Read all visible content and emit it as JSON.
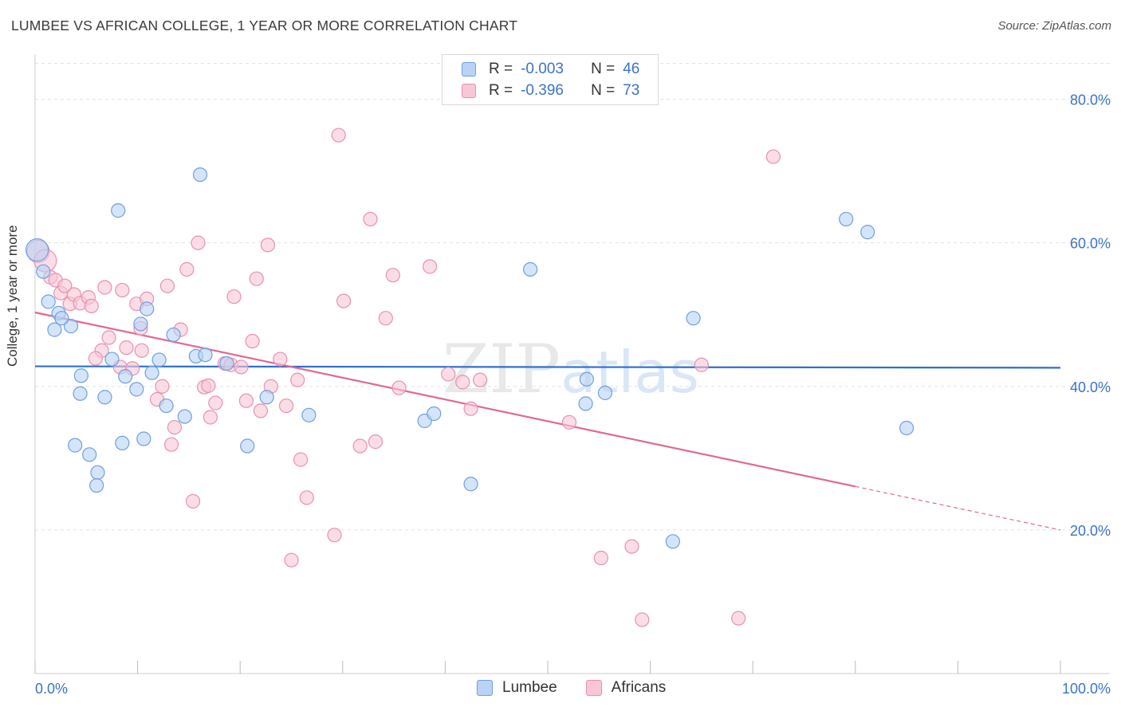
{
  "title": "LUMBEE VS AFRICAN COLLEGE, 1 YEAR OR MORE CORRELATION CHART",
  "source": "Source: ZipAtlas.com",
  "watermark": "ZIPatlas",
  "colors": {
    "lumbee_fill": "#b8d3f5",
    "lumbee_stroke": "#6f9fe0",
    "lumbee_line": "#2f6fcf",
    "africans_fill": "#f8c6d6",
    "africans_stroke": "#e891ae",
    "africans_line": "#e06896",
    "axis_text": "#3b73c8"
  },
  "legend": {
    "rows": [
      {
        "r_label": "R =",
        "r_value": "-0.003",
        "n_label": "N =",
        "n_value": "46"
      },
      {
        "r_label": "R =",
        "r_value": "-0.396",
        "n_label": "N =",
        "n_value": "73"
      }
    ]
  },
  "bottom_legend": [
    "Lumbee",
    "Africans"
  ],
  "chart_data": {
    "type": "scatter",
    "title": "LUMBEE VS AFRICAN COLLEGE, 1 YEAR OR MORE CORRELATION CHART",
    "xlabel": "",
    "ylabel": "College, 1 year or more",
    "xlim": [
      0,
      100
    ],
    "ylim": [
      0,
      85
    ],
    "x_ticks": [
      "0.0%",
      "100.0%"
    ],
    "y_ticks": [
      {
        "value": 80,
        "label": "80.0%"
      },
      {
        "value": 60,
        "label": "60.0%"
      },
      {
        "value": 40,
        "label": "40.0%"
      },
      {
        "value": 20,
        "label": "20.0%"
      }
    ],
    "series": [
      {
        "name": "Lumbee",
        "r": -0.003,
        "n": 46,
        "trend": {
          "x0": 0,
          "y0": 42.8,
          "x1": 100,
          "y1": 42.6,
          "solid_to": 100
        },
        "points": [
          [
            0.2,
            59.0
          ],
          [
            0.8,
            56.0
          ],
          [
            1.3,
            51.8
          ],
          [
            1.9,
            47.9
          ],
          [
            2.3,
            50.2
          ],
          [
            3.5,
            48.4
          ],
          [
            2.6,
            49.5
          ],
          [
            8.1,
            64.5
          ],
          [
            16.1,
            69.5
          ],
          [
            4.5,
            41.5
          ],
          [
            4.4,
            39.0
          ],
          [
            6.8,
            38.5
          ],
          [
            7.5,
            43.8
          ],
          [
            8.8,
            41.4
          ],
          [
            9.9,
            39.6
          ],
          [
            10.6,
            32.7
          ],
          [
            8.5,
            32.1
          ],
          [
            3.9,
            31.8
          ],
          [
            5.3,
            30.5
          ],
          [
            6.1,
            28.0
          ],
          [
            6.0,
            26.2
          ],
          [
            10.3,
            48.7
          ],
          [
            10.9,
            50.8
          ],
          [
            11.4,
            41.9
          ],
          [
            12.1,
            43.7
          ],
          [
            12.8,
            37.3
          ],
          [
            13.5,
            47.2
          ],
          [
            14.6,
            35.8
          ],
          [
            15.7,
            44.2
          ],
          [
            16.6,
            44.4
          ],
          [
            18.7,
            43.2
          ],
          [
            20.7,
            31.7
          ],
          [
            22.6,
            38.5
          ],
          [
            26.7,
            36.0
          ],
          [
            38.0,
            35.2
          ],
          [
            38.9,
            36.2
          ],
          [
            42.5,
            26.4
          ],
          [
            48.3,
            56.3
          ],
          [
            53.8,
            41.0
          ],
          [
            53.7,
            37.6
          ],
          [
            55.6,
            39.1
          ],
          [
            62.2,
            18.4
          ],
          [
            64.2,
            49.5
          ],
          [
            79.1,
            63.3
          ],
          [
            81.2,
            61.5
          ],
          [
            85.0,
            34.2
          ]
        ]
      },
      {
        "name": "Africans",
        "r": -0.396,
        "n": 73,
        "trend": {
          "x0": 0,
          "y0": 50.3,
          "x1": 100,
          "y1": 20.0,
          "solid_to": 80
        },
        "points": [
          [
            0.3,
            58.8
          ],
          [
            1.0,
            57.5
          ],
          [
            1.5,
            55.2
          ],
          [
            2.0,
            54.8
          ],
          [
            2.5,
            53.0
          ],
          [
            2.9,
            54.0
          ],
          [
            3.4,
            51.5
          ],
          [
            3.8,
            52.8
          ],
          [
            4.4,
            51.6
          ],
          [
            5.2,
            52.4
          ],
          [
            5.5,
            51.2
          ],
          [
            6.5,
            45.0
          ],
          [
            5.9,
            43.9
          ],
          [
            7.2,
            46.8
          ],
          [
            6.8,
            53.8
          ],
          [
            8.3,
            42.7
          ],
          [
            8.5,
            53.4
          ],
          [
            8.9,
            45.4
          ],
          [
            9.5,
            42.5
          ],
          [
            9.9,
            51.5
          ],
          [
            10.3,
            48.1
          ],
          [
            10.4,
            45.0
          ],
          [
            10.9,
            52.2
          ],
          [
            11.9,
            38.2
          ],
          [
            12.4,
            40.0
          ],
          [
            12.9,
            54.0
          ],
          [
            13.6,
            34.3
          ],
          [
            13.3,
            31.9
          ],
          [
            14.2,
            47.9
          ],
          [
            14.8,
            56.3
          ],
          [
            15.4,
            24.0
          ],
          [
            15.9,
            60.0
          ],
          [
            16.5,
            39.9
          ],
          [
            16.9,
            40.1
          ],
          [
            17.1,
            35.7
          ],
          [
            17.6,
            37.7
          ],
          [
            18.5,
            43.2
          ],
          [
            19.1,
            43.0
          ],
          [
            19.4,
            52.5
          ],
          [
            20.1,
            42.7
          ],
          [
            20.6,
            38.0
          ],
          [
            21.2,
            46.3
          ],
          [
            21.6,
            55.0
          ],
          [
            22.0,
            36.6
          ],
          [
            22.7,
            59.7
          ],
          [
            23.0,
            40.0
          ],
          [
            23.9,
            43.8
          ],
          [
            24.5,
            37.3
          ],
          [
            25.0,
            15.8
          ],
          [
            25.6,
            40.9
          ],
          [
            25.9,
            29.8
          ],
          [
            26.5,
            24.5
          ],
          [
            29.2,
            19.3
          ],
          [
            29.6,
            75.0
          ],
          [
            30.1,
            51.9
          ],
          [
            31.7,
            31.7
          ],
          [
            32.7,
            63.3
          ],
          [
            33.2,
            32.3
          ],
          [
            34.2,
            49.5
          ],
          [
            34.9,
            55.5
          ],
          [
            35.5,
            39.8
          ],
          [
            38.5,
            56.7
          ],
          [
            40.3,
            41.7
          ],
          [
            41.7,
            40.6
          ],
          [
            42.5,
            36.9
          ],
          [
            43.4,
            40.9
          ],
          [
            52.1,
            35.0
          ],
          [
            55.2,
            16.1
          ],
          [
            58.2,
            17.7
          ],
          [
            59.2,
            7.5
          ],
          [
            65.0,
            43.0
          ],
          [
            68.6,
            7.7
          ],
          [
            72.0,
            72.0
          ]
        ]
      }
    ]
  }
}
